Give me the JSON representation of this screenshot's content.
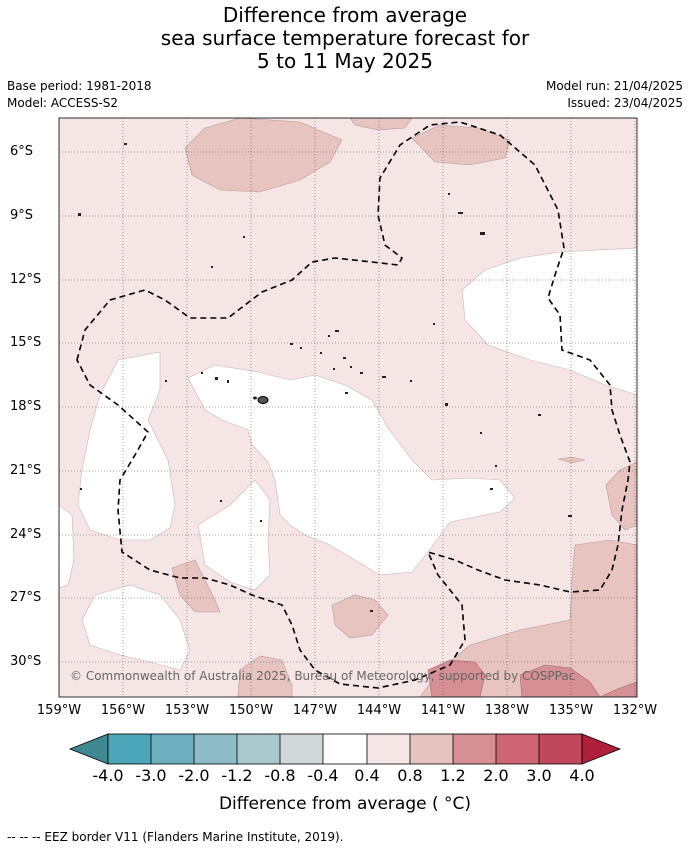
{
  "title": {
    "line1": "Difference from average",
    "line2": "sea surface temperature forecast for",
    "line3": "5 to 11 May 2025"
  },
  "meta": {
    "base_period": "Base period: 1981-2018",
    "model": "Model: ACCESS-S2",
    "model_run": "Model run: 21/04/2025",
    "issued": "Issued: 23/04/2025"
  },
  "map": {
    "lat_labels": [
      "6°S",
      "9°S",
      "12°S",
      "15°S",
      "18°S",
      "21°S",
      "24°S",
      "27°S",
      "30°S"
    ],
    "lon_labels": [
      "159°W",
      "156°W",
      "153°W",
      "150°W",
      "147°W",
      "144°W",
      "141°W",
      "138°W",
      "135°W",
      "132°W"
    ],
    "copyright": "© Commonwealth of Australia 2025, Bureau of Meteorology, supported by COSPPac",
    "gridlines": true
  },
  "colorbar": {
    "labels": [
      "-4.0",
      "-3.0",
      "-2.0",
      "-1.2",
      "-0.8",
      "-0.4",
      "0.4",
      "0.8",
      "1.2",
      "2.0",
      "3.0",
      "4.0"
    ],
    "colors": [
      "#3f8791",
      "#4aa6b8",
      "#6eb0c0",
      "#8dbcc6",
      "#abc9cd",
      "#d1d8da",
      "#ffffff",
      "#f5e5e4",
      "#e7c3bf",
      "#d68f95",
      "#cd6575",
      "#c1475e",
      "#b01f3c"
    ],
    "title": "Difference from average ( °C)"
  },
  "footer": "-- -- -- EEZ border V11 (Flanders Marine Institute, 2019)."
}
